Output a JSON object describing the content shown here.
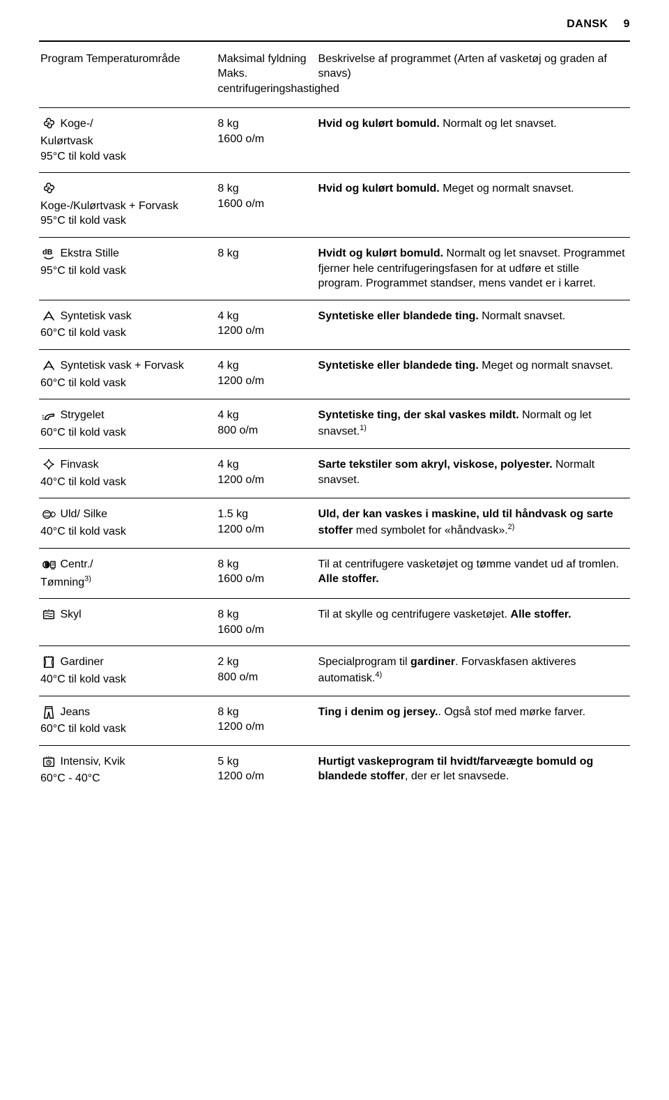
{
  "header": {
    "language": "DANSK",
    "page_no": "9"
  },
  "columns": {
    "c1": "Program\nTemperaturområde",
    "c2": "Maksimal\nfyldning\nMaks. centrifugeringshastighed",
    "c3": "Beskrivelse af programmet\n(Arten af vasketøj og graden af snavs)"
  },
  "rows": [
    {
      "icon": "cotton",
      "name_html": " Koge-/\nKulørtvask\n95°C til kold vask",
      "load": "8 kg\n1600 o/m",
      "desc_html": "<b>Hvid og kulørt bomuld.</b> Normalt og let snavset."
    },
    {
      "icon": "cotton",
      "name_html": "\nKoge-/Kulørtvask + Forvask\n95°C til kold vask",
      "load": "8 kg\n1600 o/m",
      "desc_html": "<b>Hvid og kulørt bomuld.</b> Meget og normalt snavset."
    },
    {
      "icon": "db",
      "name_html": " Ekstra Stille\n95°C til kold vask",
      "load": "8 kg",
      "desc_html": "<b>Hvidt og kulørt bomuld.</b> Normalt og let snavset. Programmet fjerner hele centrifugeringsfasen for at udføre et stille program. Programmet standser, mens vandet er i karret."
    },
    {
      "icon": "syn",
      "name_html": " Syntetisk vask\n60°C til kold vask",
      "load": "4 kg\n1200 o/m",
      "desc_html": "<b>Syntetiske eller blandede ting.</b> Normalt snavset."
    },
    {
      "icon": "syn",
      "name_html": " Syntetisk vask + Forvask\n60°C til kold vask",
      "load": "4 kg\n1200 o/m",
      "desc_html": "<b>Syntetiske eller blandede ting.</b> Meget og normalt snavset."
    },
    {
      "icon": "iron",
      "name_html": " Strygelet\n60°C til kold vask",
      "load": "4 kg\n800 o/m",
      "desc_html": "<b>Syntetiske ting, der skal vaskes mildt.</b> Normalt og let snavset.<span class=\"sup\">1)</span>"
    },
    {
      "icon": "fine",
      "name_html": " Finvask\n40°C til kold vask",
      "load": "4 kg\n1200 o/m",
      "desc_html": "<b>Sarte tekstiler som akryl, viskose, polyester.</b> Normalt snavset."
    },
    {
      "icon": "wool",
      "name_html": " Uld/ Silke\n40°C til kold vask",
      "load": "1.5 kg\n1200 o/m",
      "desc_html": "<b>Uld, der kan vaskes i maskine, uld til håndvask og sarte stoffer</b> med symbolet for «håndvask».<span class=\"sup\">2)</span>"
    },
    {
      "icon": "spin",
      "name_html": " Centr./\nTømning<span class=\"sup\">3)</span>",
      "load": "8 kg\n1600 o/m",
      "desc_html": "Til at centrifugere vasketøjet og tømme vandet ud af tromlen. <b>Alle stoffer.</b>"
    },
    {
      "icon": "rinse",
      "name_html": " Skyl",
      "load": "8 kg\n1600 o/m",
      "desc_html": "Til at skylle og centrifugere vasketøjet. <b>Alle stoffer.</b>"
    },
    {
      "icon": "curtain",
      "name_html": " Gardiner\n40°C til kold vask",
      "load": "2 kg\n800 o/m",
      "desc_html": "Specialprogram til <b>gardiner</b>. Forvaskfasen aktiveres automatisk.<span class=\"sup\">4)</span>"
    },
    {
      "icon": "jeans",
      "name_html": " Jeans\n60°C til kold vask",
      "load": "8 kg\n1200 o/m",
      "desc_html": "<b>Ting i denim og jersey.</b>. Også stof med mørke farver."
    },
    {
      "icon": "quick",
      "name_html": " Intensiv, Kvik\n60°C - 40°C",
      "load": "5 kg\n1200 o/m",
      "desc_html": "<b>Hurtigt vaskeprogram til hvidt/farveægte bomuld og blandede stoffer</b>, der er let snavsede."
    }
  ]
}
